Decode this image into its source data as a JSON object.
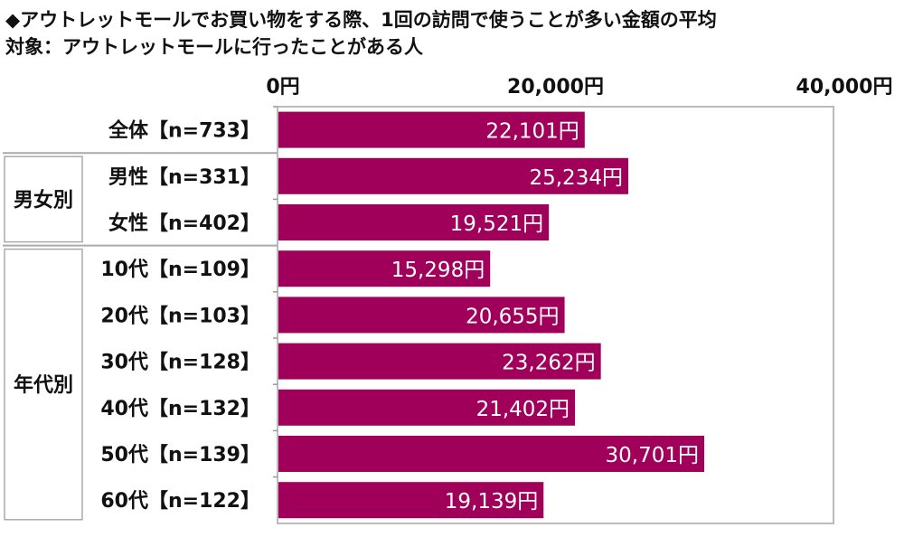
{
  "title": "◆アウトレットモールでお買い物をする際、1回の訪問で使うことが多い金額の平均",
  "subtitle": "対象：アウトレットモールに行ったことがある人",
  "chart_data": {
    "type": "bar",
    "orientation": "horizontal",
    "title": "◆アウトレットモールでお買い物をする際、1回の訪問で使うことが多い金額の平均",
    "subtitle": "対象：アウトレットモールに行ったことがある人",
    "xlim": [
      0,
      40000
    ],
    "ticks": [
      0,
      20000,
      40000
    ],
    "tick_labels": [
      "0円",
      "20,000円",
      "40,000円"
    ],
    "axis_position": "top",
    "grid": false,
    "bar_color": "#A0005A",
    "label_color": "#ffffff",
    "groups": [
      {
        "label": "",
        "rows": [
          0
        ]
      },
      {
        "label": "男女別",
        "rows": [
          1,
          2
        ]
      },
      {
        "label": "年代別",
        "rows": [
          3,
          4,
          5,
          6,
          7,
          8
        ]
      }
    ],
    "categories": [
      "全体【n=733】",
      "男性【n=331】",
      "女性【n=402】",
      "10代【n=109】",
      "20代【n=103】",
      "30代【n=128】",
      "40代【n=132】",
      "50代【n=139】",
      "60代【n=122】"
    ],
    "values": [
      22101,
      25234,
      19521,
      15298,
      20655,
      23262,
      21402,
      30701,
      19139
    ],
    "data_labels": [
      "22,101円",
      "25,234円",
      "19,521円",
      "15,298円",
      "20,655円",
      "23,262円",
      "21,402円",
      "30,701円",
      "19,139円"
    ]
  }
}
